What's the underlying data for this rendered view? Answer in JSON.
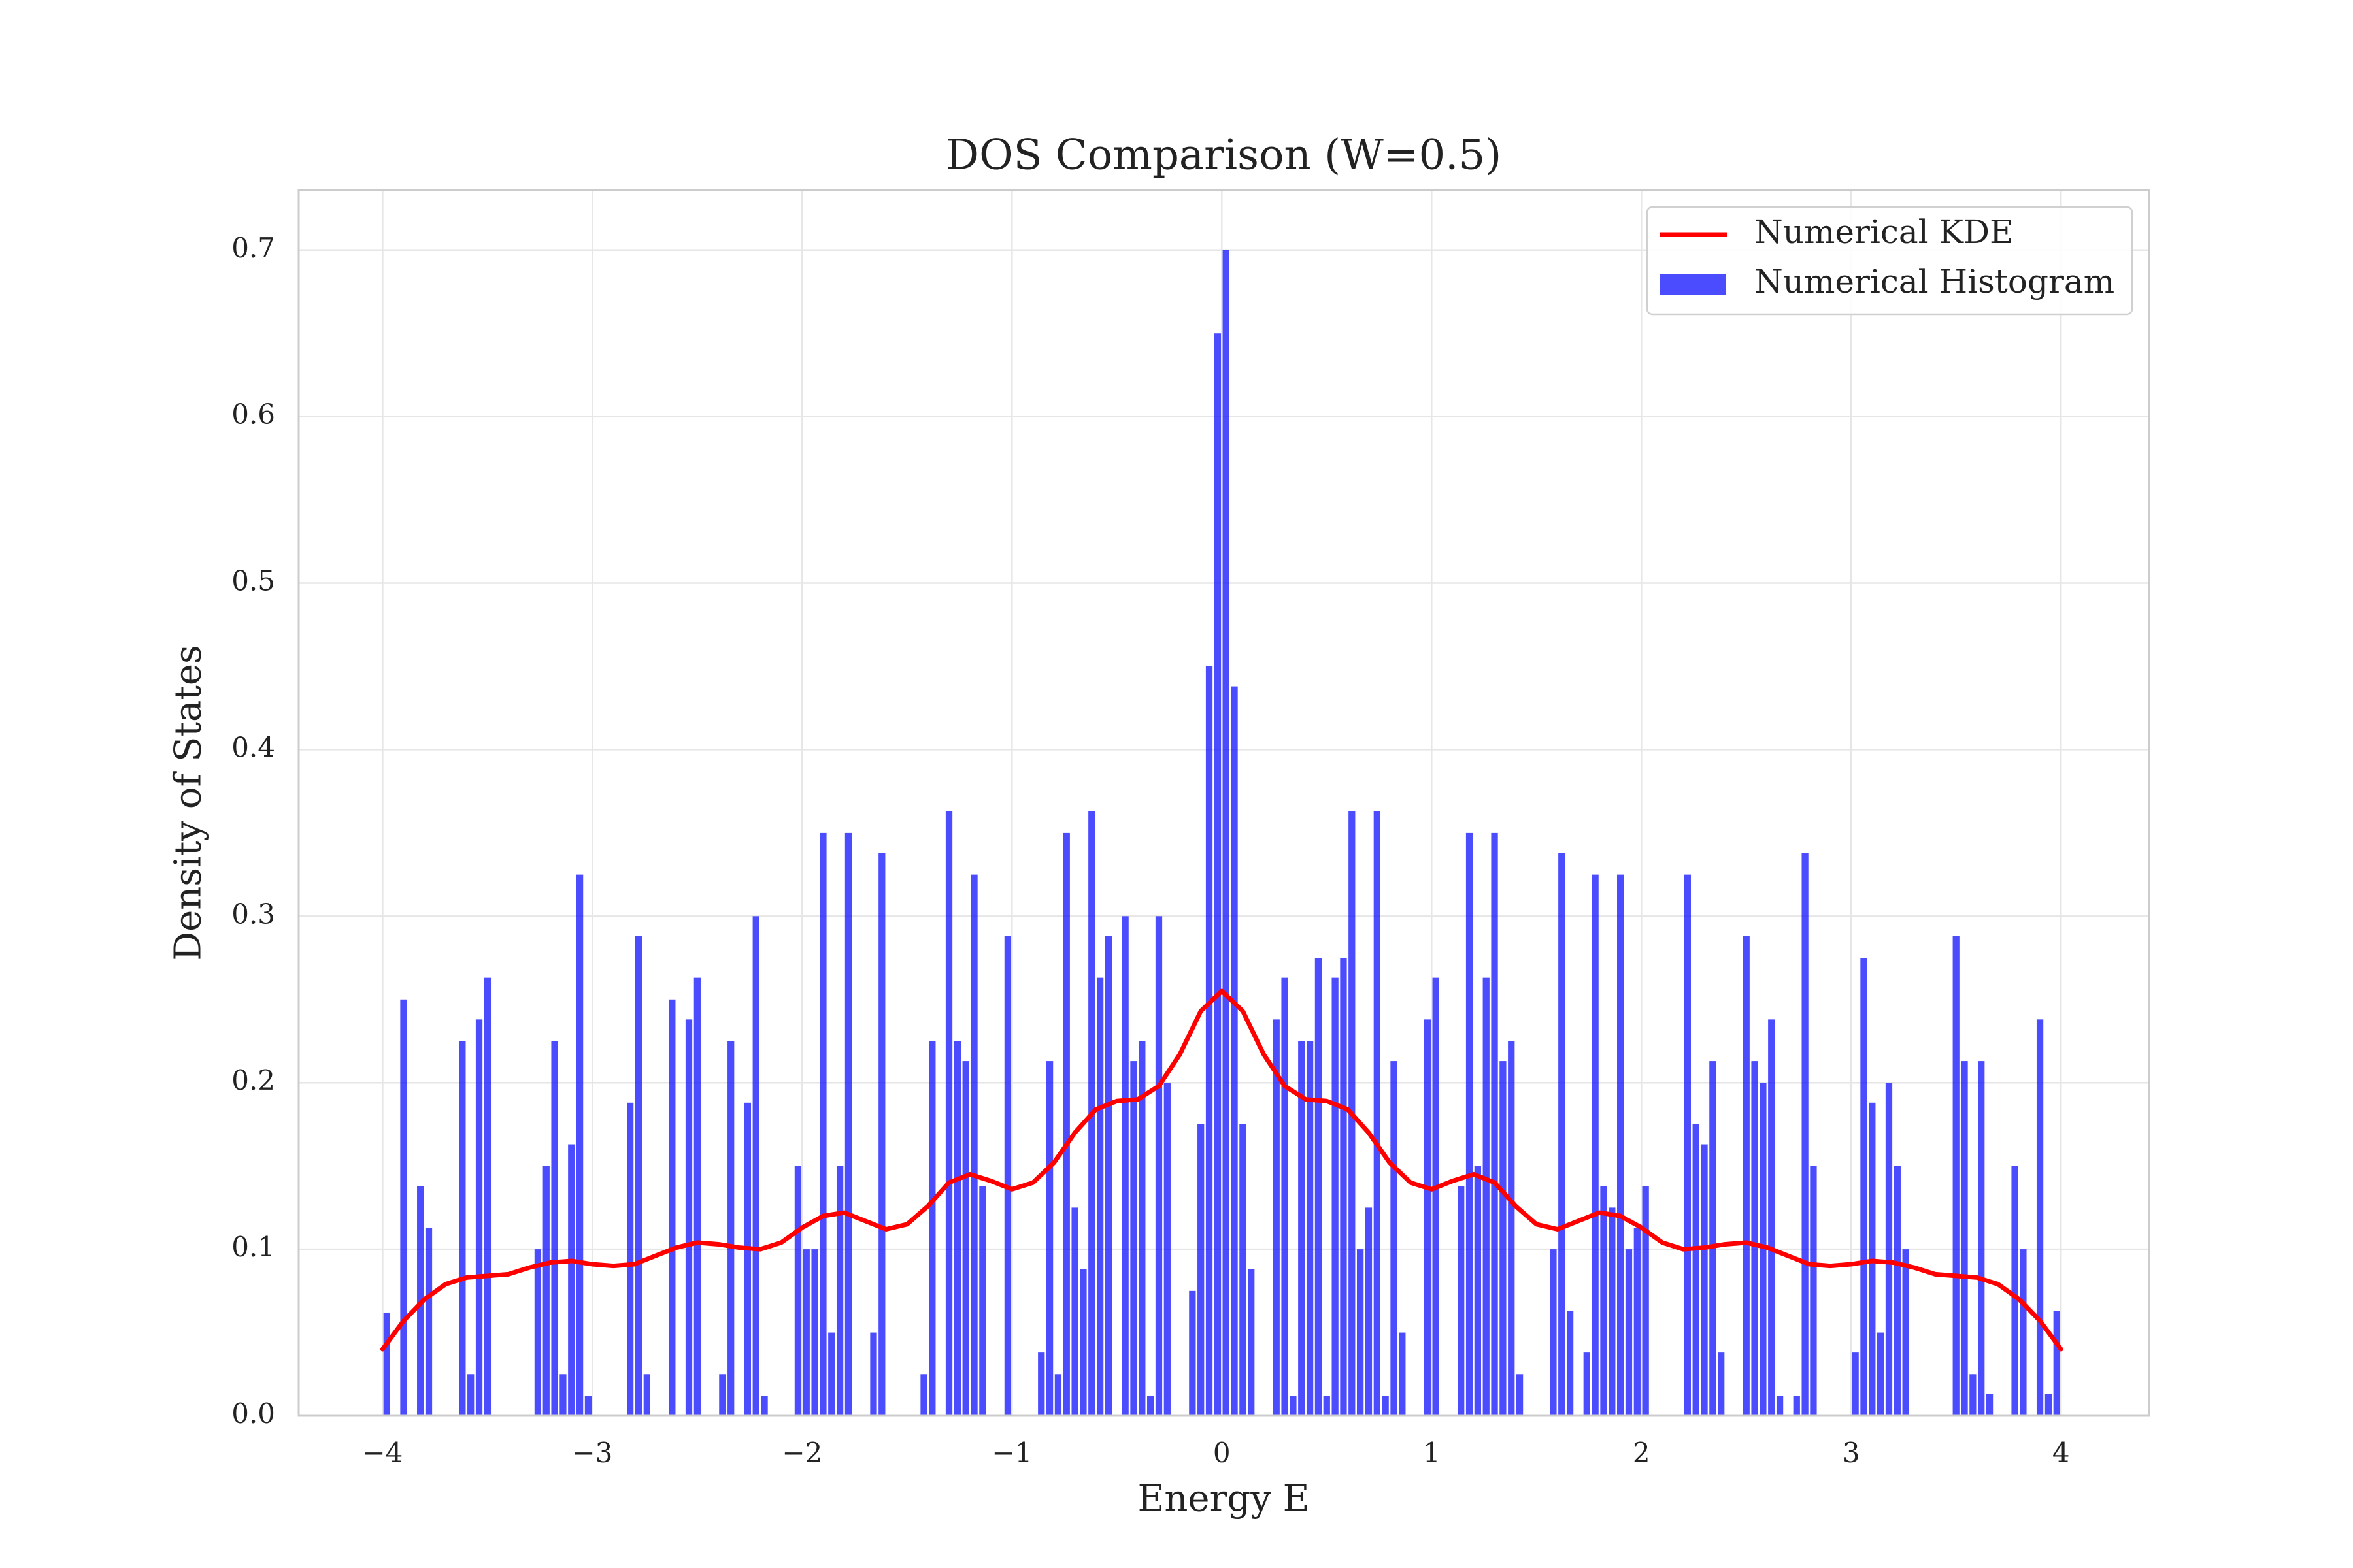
{
  "chart_data": {
    "type": "histogram",
    "title": "DOS Comparison (W=0.5)",
    "x_label": "Energy E",
    "y_label": "Density of States",
    "xlim": [
      -4.4,
      4.42
    ],
    "ylim": [
      0,
      0.736
    ],
    "xticks": [
      {
        "value": -4,
        "label": "−4"
      },
      {
        "value": -3,
        "label": "−3"
      },
      {
        "value": -2,
        "label": "−2"
      },
      {
        "value": -1,
        "label": "−1"
      },
      0,
      1,
      2,
      3,
      4
    ],
    "yticks": [
      {
        "value": 0,
        "label": "0.0"
      },
      0.1,
      0.2,
      0.3,
      0.4,
      0.5,
      0.6,
      0.7
    ],
    "grid": true,
    "legend": "upper right",
    "series": [
      {
        "name": "Numerical KDE",
        "type": "line",
        "color": "#ff0000",
        "x": [
          -4.0,
          -3.9,
          -3.8,
          -3.7,
          -3.6,
          -3.5,
          -3.4,
          -3.3,
          -3.2,
          -3.1,
          -3.0,
          -2.9,
          -2.8,
          -2.7,
          -2.6,
          -2.5,
          -2.4,
          -2.3,
          -2.2,
          -2.1,
          -2.0,
          -1.9,
          -1.8,
          -1.7,
          -1.6,
          -1.5,
          -1.4,
          -1.3,
          -1.2,
          -1.1,
          -1.0,
          -0.9,
          -0.8,
          -0.7,
          -0.6,
          -0.5,
          -0.4,
          -0.3,
          -0.2,
          -0.1,
          0.0,
          0.1,
          0.2,
          0.3,
          0.4,
          0.5,
          0.6,
          0.7,
          0.8,
          0.9,
          1.0,
          1.1,
          1.2,
          1.3,
          1.4,
          1.5,
          1.6,
          1.7,
          1.8,
          1.9,
          2.0,
          2.1,
          2.2,
          2.3,
          2.4,
          2.5,
          2.6,
          2.7,
          2.8,
          2.9,
          3.0,
          3.1,
          3.2,
          3.3,
          3.4,
          3.5,
          3.6,
          3.7,
          3.8,
          3.9,
          4.0
        ],
        "values": [
          0.04,
          0.057,
          0.07,
          0.079,
          0.083,
          0.084,
          0.085,
          0.089,
          0.092,
          0.093,
          0.091,
          0.09,
          0.091,
          0.096,
          0.101,
          0.104,
          0.103,
          0.101,
          0.1,
          0.104,
          0.113,
          0.12,
          0.122,
          0.117,
          0.112,
          0.115,
          0.126,
          0.14,
          0.145,
          0.141,
          0.136,
          0.14,
          0.152,
          0.17,
          0.184,
          0.189,
          0.19,
          0.198,
          0.217,
          0.243,
          0.255,
          0.243,
          0.217,
          0.198,
          0.19,
          0.189,
          0.184,
          0.17,
          0.152,
          0.14,
          0.136,
          0.141,
          0.145,
          0.14,
          0.126,
          0.115,
          0.112,
          0.117,
          0.122,
          0.12,
          0.113,
          0.104,
          0.1,
          0.101,
          0.103,
          0.104,
          0.101,
          0.096,
          0.091,
          0.09,
          0.091,
          0.093,
          0.092,
          0.089,
          0.085,
          0.084,
          0.083,
          0.079,
          0.07,
          0.057,
          0.04
        ]
      },
      {
        "name": "Numerical Histogram",
        "type": "histogram",
        "color": "#0000ff",
        "bins": [
          -4,
          -3.96,
          -3.92,
          -3.88,
          -3.84,
          -3.8,
          -3.76,
          -3.72,
          -3.68,
          -3.64,
          -3.6,
          -3.56,
          -3.52,
          -3.48,
          -3.44,
          -3.4,
          -3.36,
          -3.32,
          -3.28,
          -3.24,
          -3.2,
          -3.16,
          -3.12,
          -3.08,
          -3.04,
          -3,
          -2.96,
          -2.92,
          -2.88,
          -2.84,
          -2.8,
          -2.76,
          -2.72,
          -2.68,
          -2.64,
          -2.6,
          -2.56,
          -2.52,
          -2.48,
          -2.44,
          -2.4,
          -2.36,
          -2.32,
          -2.28,
          -2.24,
          -2.2,
          -2.16,
          -2.12,
          -2.08,
          -2.04,
          -2,
          -1.96,
          -1.92,
          -1.88,
          -1.84,
          -1.8,
          -1.76,
          -1.72,
          -1.68,
          -1.64,
          -1.6,
          -1.56,
          -1.52,
          -1.48,
          -1.44,
          -1.4,
          -1.36,
          -1.32,
          -1.28,
          -1.24,
          -1.2,
          -1.16,
          -1.12,
          -1.08,
          -1.04,
          -1,
          -0.96,
          -0.92,
          -0.88,
          -0.84,
          -0.8,
          -0.76,
          -0.72,
          -0.68,
          -0.64,
          -0.6,
          -0.56,
          -0.52,
          -0.48,
          -0.44,
          -0.4,
          -0.36,
          -0.32,
          -0.28,
          -0.24,
          -0.2,
          -0.16,
          -0.12,
          -0.08,
          -0.04,
          0,
          0.04,
          0.08,
          0.12,
          0.16,
          0.2,
          0.24,
          0.28,
          0.32,
          0.36,
          0.4,
          0.44,
          0.48,
          0.52,
          0.56,
          0.6,
          0.64,
          0.68,
          0.72,
          0.76,
          0.8,
          0.84,
          0.88,
          0.92,
          0.96,
          1,
          1.04,
          1.08,
          1.12,
          1.16,
          1.2,
          1.24,
          1.28,
          1.32,
          1.36,
          1.4,
          1.44,
          1.48,
          1.52,
          1.56,
          1.6,
          1.64,
          1.68,
          1.72,
          1.76,
          1.8,
          1.84,
          1.88,
          1.92,
          1.96,
          2,
          2.04,
          2.08,
          2.12,
          2.16,
          2.2,
          2.24,
          2.28,
          2.32,
          2.36,
          2.4,
          2.44,
          2.48,
          2.52,
          2.56,
          2.6,
          2.64,
          2.68,
          2.72,
          2.76,
          2.8,
          2.84,
          2.88,
          2.92,
          2.96,
          3,
          3.04,
          3.08,
          3.12,
          3.16,
          3.2,
          3.24,
          3.28,
          3.32,
          3.36,
          3.4,
          3.44,
          3.48,
          3.52,
          3.56,
          3.6,
          3.64,
          3.68,
          3.72,
          3.76,
          3.8,
          3.84,
          3.88,
          3.92,
          3.96,
          4
        ],
        "values": [
          0.062,
          0,
          0.25,
          0,
          0.138,
          0.113,
          0,
          0,
          0,
          0.225,
          0.025,
          0.238,
          0.263,
          0,
          0,
          0,
          0,
          0,
          0.1,
          0.15,
          0.225,
          0.025,
          0.163,
          0.325,
          0.012,
          0,
          0,
          0,
          0,
          0.188,
          0.288,
          0.025,
          0,
          0,
          0.25,
          0,
          0.238,
          0.263,
          0,
          0,
          0.025,
          0.225,
          0,
          0.188,
          0.3,
          0.012,
          0,
          0,
          0,
          0.15,
          0.1,
          0.1,
          0.35,
          0.05,
          0.15,
          0.35,
          0,
          0,
          0.05,
          0.338,
          0,
          0,
          0,
          0,
          0.025,
          0.225,
          0,
          0.363,
          0.225,
          0.213,
          0.325,
          0.138,
          0,
          0,
          0.288,
          0,
          0,
          0,
          0.038,
          0.213,
          0.025,
          0.35,
          0.125,
          0.088,
          0.363,
          0.263,
          0.288,
          0,
          0.3,
          0.213,
          0.225,
          0.012,
          0.3,
          0.2,
          0,
          0,
          0.075,
          0.175,
          0.45,
          0.65,
          0.7,
          0.438,
          0.175,
          0.088,
          0,
          0,
          0.238,
          0.263,
          0.012,
          0.225,
          0.225,
          0.275,
          0.012,
          0.263,
          0.275,
          0.363,
          0.1,
          0.125,
          0.363,
          0.012,
          0.213,
          0.05,
          0,
          0,
          0.238,
          0.263,
          0,
          0,
          0.138,
          0.35,
          0.15,
          0.263,
          0.35,
          0.213,
          0.225,
          0.025,
          0,
          0,
          0,
          0.1,
          0.338,
          0.063,
          0,
          0.038,
          0.325,
          0.138,
          0.125,
          0.325,
          0.1,
          0.113,
          0.138,
          0,
          0,
          0,
          0,
          0.325,
          0.175,
          0.163,
          0.213,
          0.038,
          0,
          0,
          0.288,
          0.213,
          0.2,
          0.238,
          0.012,
          0,
          0.012,
          0.338,
          0.15,
          0,
          0,
          0,
          0,
          0.038,
          0.275,
          0.188,
          0.05,
          0.2,
          0.15,
          0.1,
          0,
          0,
          0,
          0,
          0,
          0.288,
          0.213,
          0.025,
          0.213,
          0.013,
          0,
          0,
          0.15,
          0.1,
          0,
          0.238,
          0.013,
          0.063
        ]
      }
    ]
  }
}
